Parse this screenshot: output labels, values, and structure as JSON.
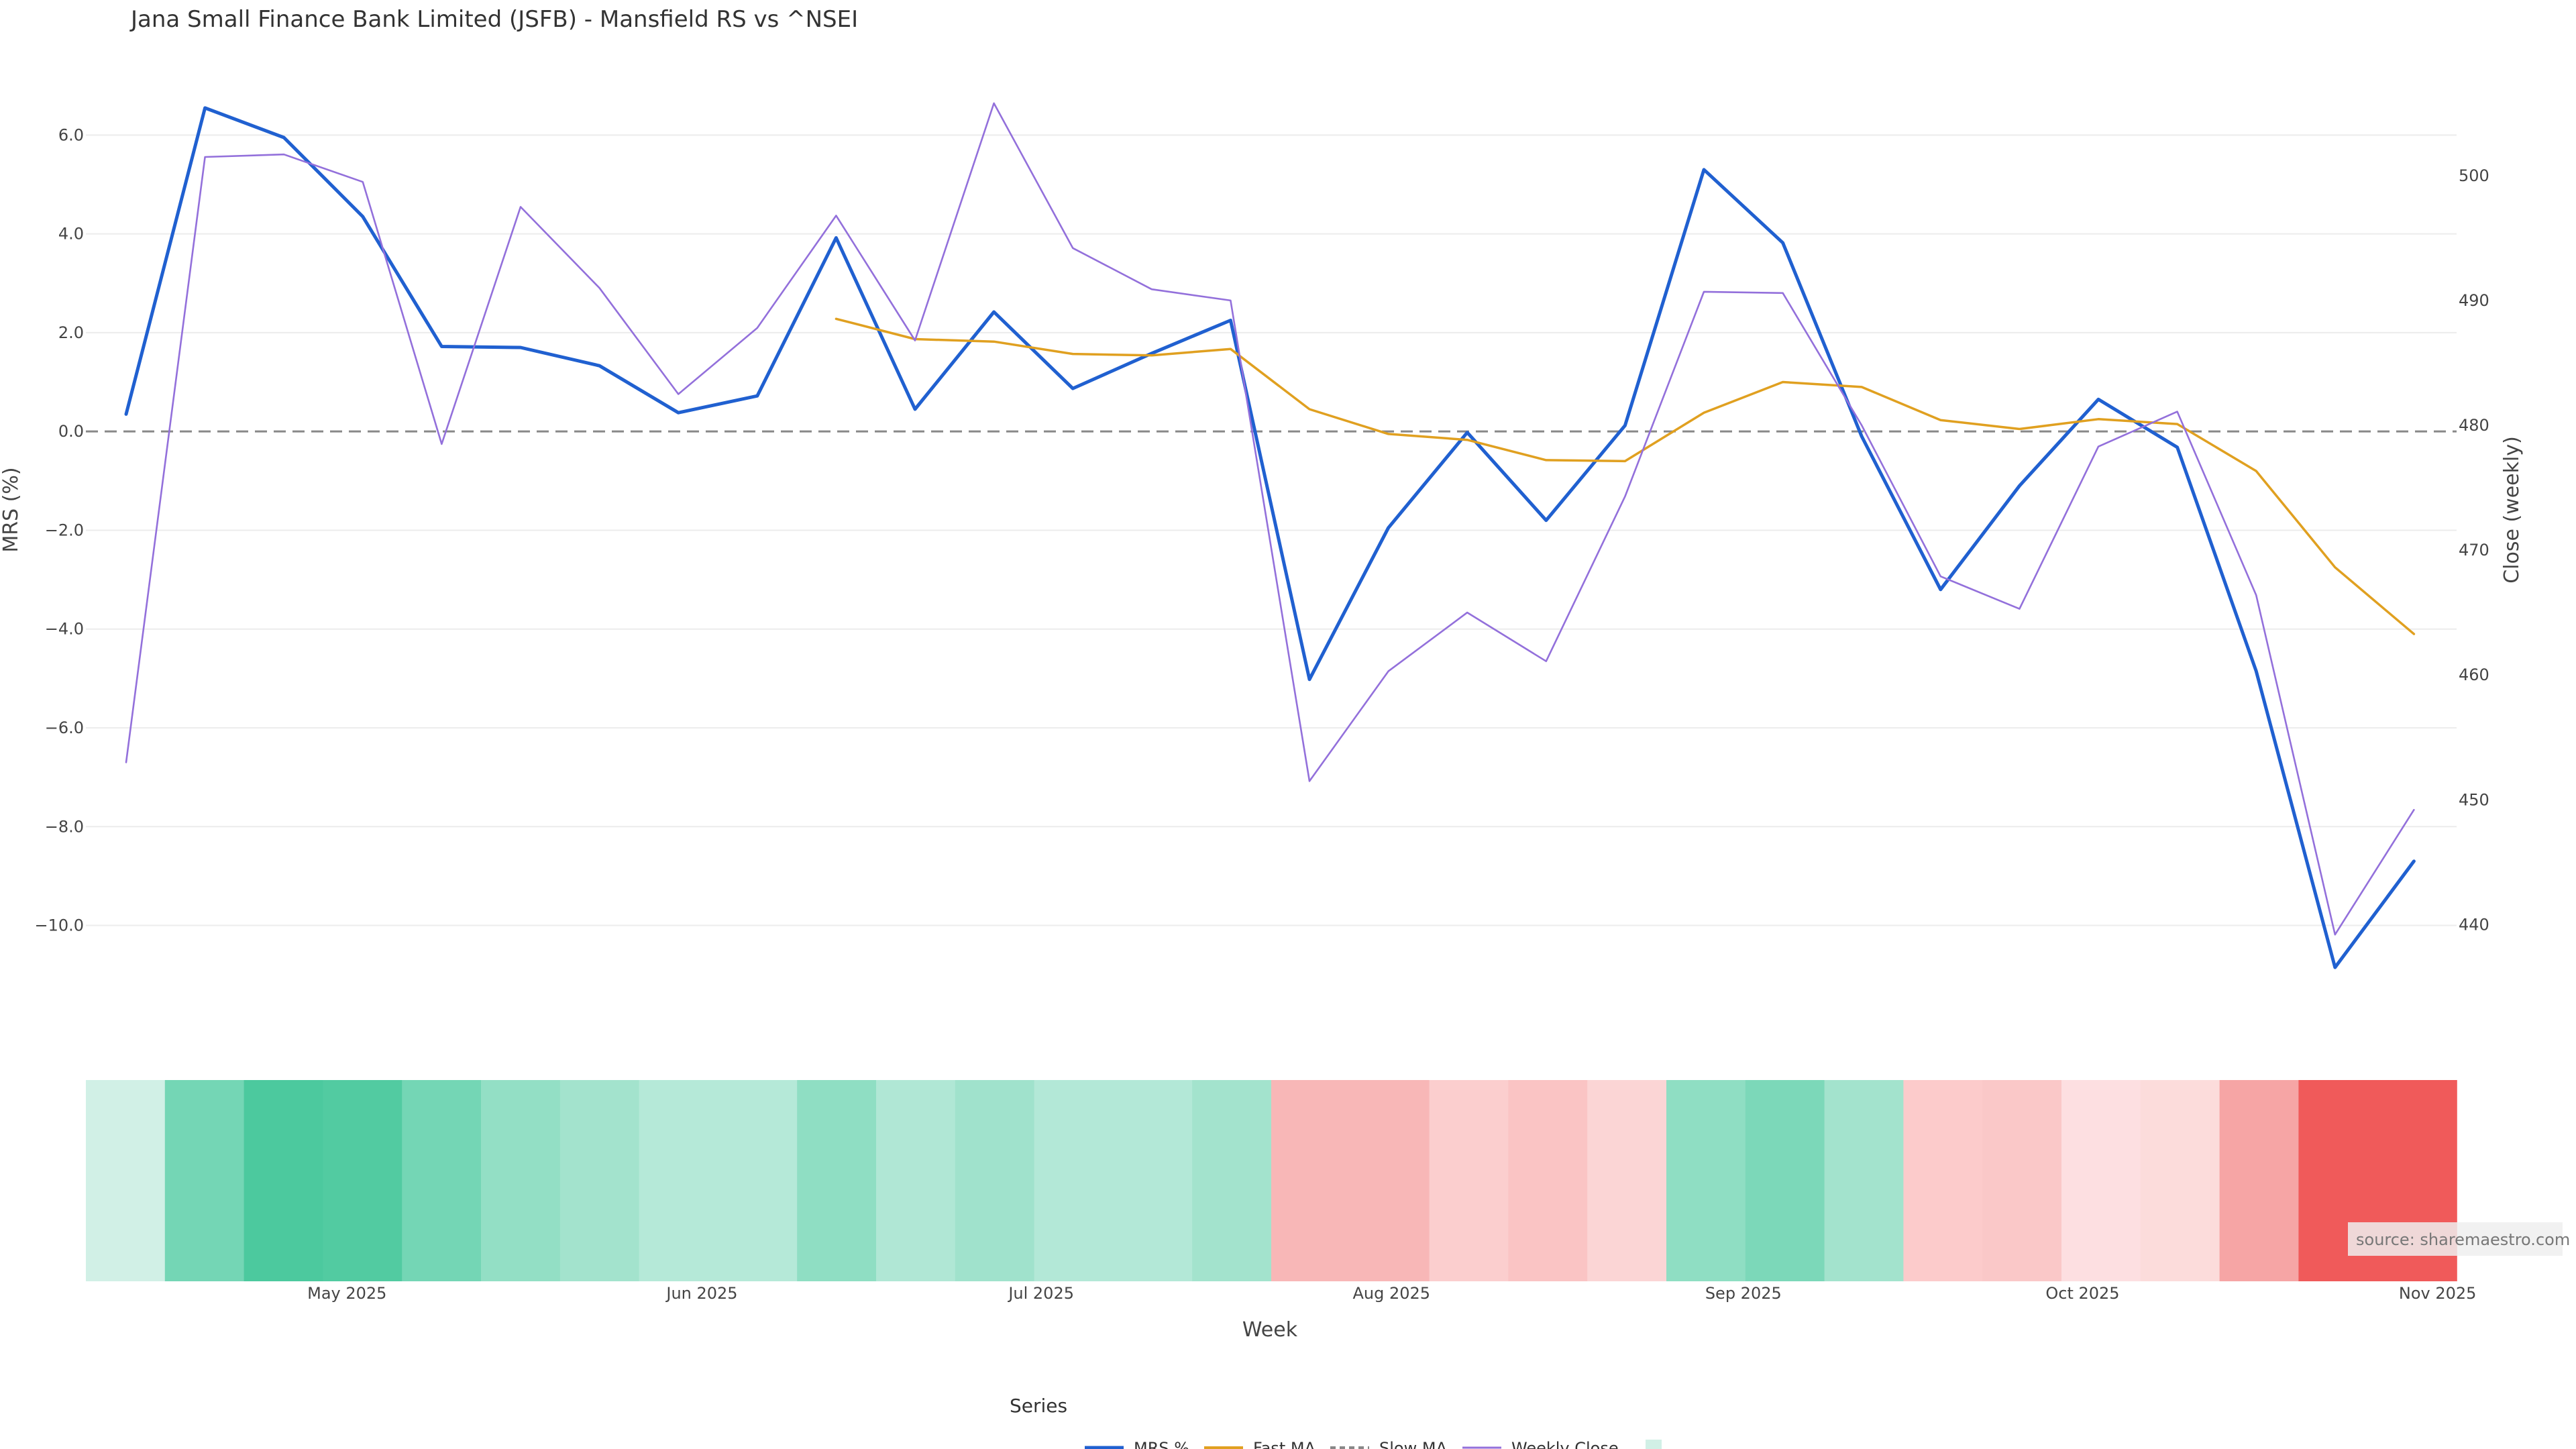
{
  "chart_data": {
    "type": "line",
    "title": "Jana Small Finance Bank Limited (JSFB) - Mansfield RS vs ^NSEI",
    "xlabel": "Week",
    "ylabel_left": "MRS (%)",
    "ylabel_right": "Close (weekly)",
    "ylim_left": [
      -11.5,
      7.2
    ],
    "ylim_right": [
      434,
      508
    ],
    "yticks_left": [
      6.0,
      4.0,
      2.0,
      0.0,
      -2.0,
      -4.0,
      -6.0,
      -8.0,
      -10.0
    ],
    "ytick_labels_left": [
      "6.0",
      "4.0",
      "2.0",
      "0.0",
      "−2.0",
      "−4.0",
      "−6.0",
      "−8.0",
      "−10.0"
    ],
    "yticks_right": [
      500,
      490,
      480,
      470,
      460,
      450,
      440
    ],
    "ytick_labels_right": [
      "500",
      "490",
      "480",
      "470",
      "460",
      "450",
      "440"
    ],
    "x_tick_labels": [
      "May 2025",
      "Jun 2025",
      "Jul 2025",
      "Aug 2025",
      "Sep 2025",
      "Oct 2025",
      "Nov 2025"
    ],
    "x_tick_weeks": [
      2.8,
      7.3,
      11.6,
      16.04,
      20.5,
      24.8,
      29.3
    ],
    "weeks": 31,
    "series": [
      {
        "name": "MRS %",
        "color": "#2060d0",
        "values": [
          0.35,
          6.55,
          5.95,
          4.35,
          1.72,
          1.7,
          1.33,
          0.38,
          0.72,
          3.92,
          0.45,
          2.42,
          0.87,
          1.58,
          2.25,
          -5.02,
          -1.95,
          -0.02,
          -1.8,
          0.12,
          5.3,
          3.82,
          -0.1,
          -3.2,
          -1.1,
          0.65,
          -0.32,
          -4.85,
          -10.85,
          -8.7
        ]
      },
      {
        "name": "Fast MA",
        "color": "#e0a020",
        "values": [
          null,
          null,
          null,
          null,
          null,
          null,
          null,
          null,
          null,
          2.28,
          1.87,
          1.82,
          1.57,
          1.54,
          1.67,
          0.45,
          -0.05,
          -0.17,
          -0.58,
          -0.6,
          0.38,
          1.0,
          0.9,
          0.23,
          0.05,
          0.25,
          0.15,
          -0.8,
          -2.75,
          -4.1
        ]
      },
      {
        "name": "Slow MA",
        "color": "#888888",
        "values": []
      },
      {
        "name": "Weekly Close",
        "color": "#9370db",
        "values": [
          453.0,
          501.5,
          501.7,
          499.5,
          478.5,
          497.5,
          491.0,
          482.5,
          487.8,
          496.8,
          486.8,
          505.8,
          494.2,
          490.9,
          490.0,
          451.5,
          460.3,
          465.0,
          461.1,
          474.3,
          490.7,
          490.6,
          480.0,
          467.9,
          465.3,
          478.3,
          481.1,
          466.4,
          439.2,
          449.2
        ]
      }
    ],
    "heat_strip": {
      "description": "MRS regime band per week",
      "colors": [
        "#d1f0e6",
        "#74d6b5",
        "#4cc99e",
        "#52cba1",
        "#74d6b5",
        "#93dfc5",
        "#a3e3cd",
        "#b5e9d8",
        "#b5e9d8",
        "#8fdec3",
        "#b0e7d5",
        "#a0e2cc",
        "#b3e8d7",
        "#b3e8d7",
        "#a3e3cd",
        "#f8b7b7",
        "#f8b7b7",
        "#fbcece",
        "#fac4c4",
        "#fbd5d5",
        "#8fdec3",
        "#7cd8b9",
        "#a3e3cd",
        "#fccbcb",
        "#fac8c8",
        "#fddfe1",
        "#fcdcdb",
        "#f6a5a5",
        "#f05a5a",
        "#f05a5a"
      ]
    },
    "legend": {
      "title": "Series",
      "items": [
        "MRS %",
        "Fast MA",
        "Slow MA",
        "Weekly Close"
      ]
    },
    "zero_line": 0.0
  },
  "source_label": "source: sharemaestro.com"
}
